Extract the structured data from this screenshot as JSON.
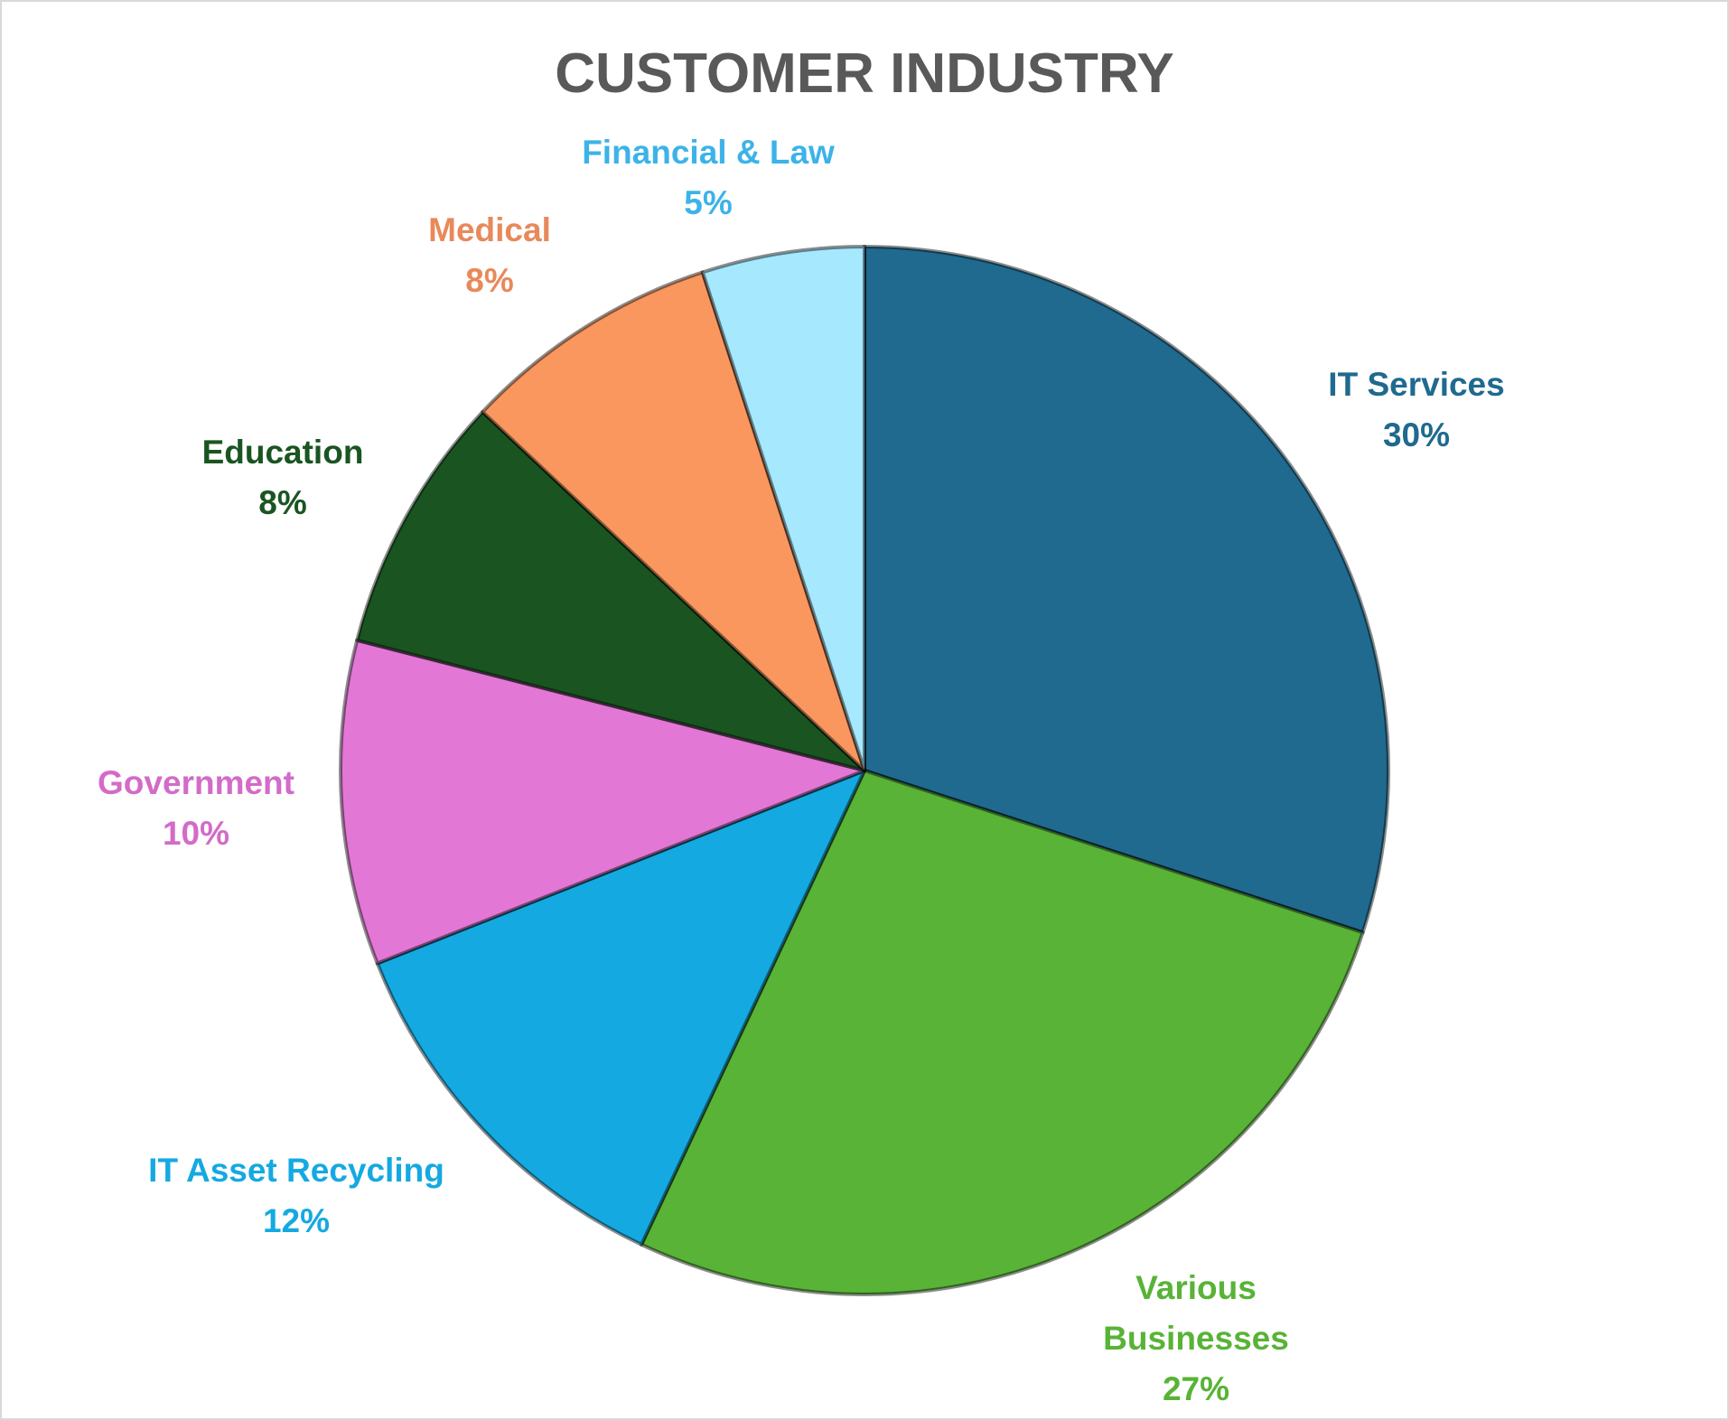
{
  "chart_data": {
    "type": "pie",
    "title": "CUSTOMER INDUSTRY",
    "categories": [
      "IT Services",
      "Various Businesses",
      "IT Asset Recycling",
      "Government",
      "Education",
      "Medical",
      "Financial & Law"
    ],
    "values": [
      30,
      27,
      12,
      10,
      8,
      8,
      5
    ],
    "value_labels": [
      "30%",
      "27%",
      "12%",
      "10%",
      "8%",
      "8%",
      "5%"
    ],
    "colors": [
      "#1f6a8e",
      "#58b336",
      "#15a9e1",
      "#e377d6",
      "#1a5521",
      "#f9975f",
      "#a6e8fe"
    ],
    "label_colors": [
      "#1f6a8e",
      "#58b336",
      "#15a9e1",
      "#d36bc8",
      "#1a5521",
      "#e8895a",
      "#3cb3e8"
    ]
  }
}
